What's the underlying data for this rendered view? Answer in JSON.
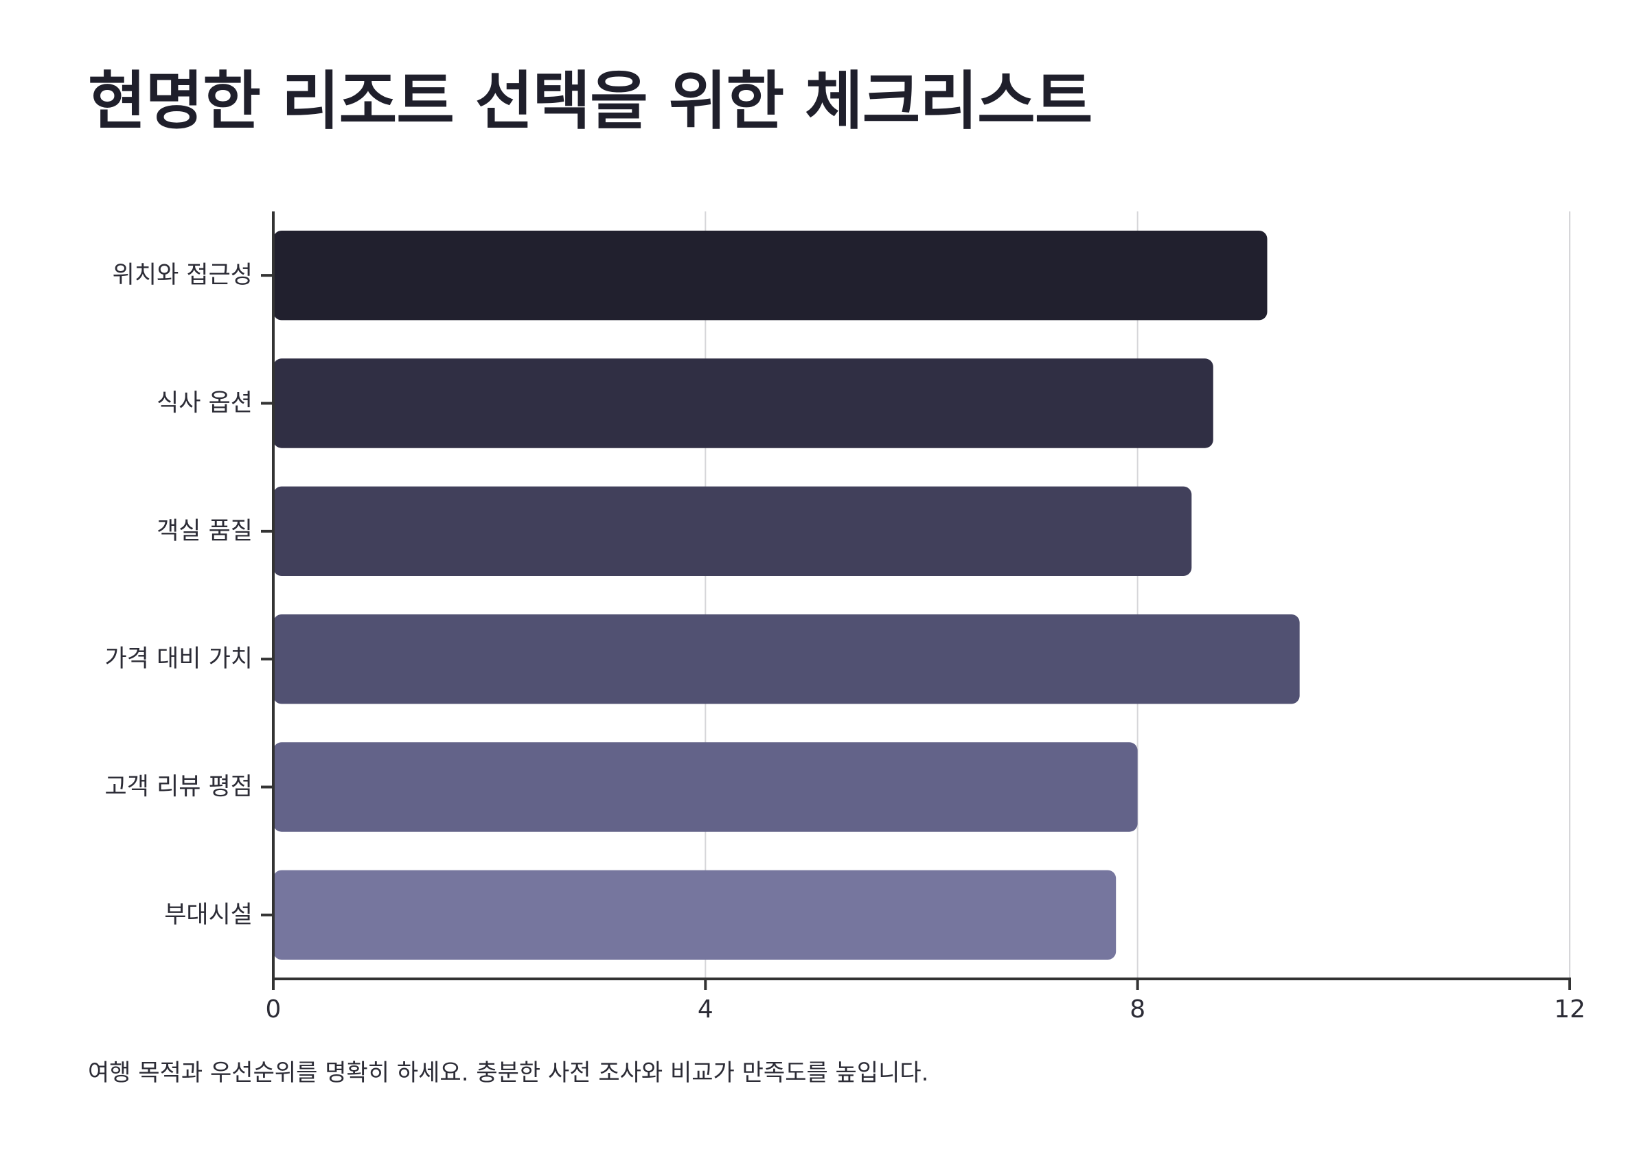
{
  "title": "현명한 리조트 선택을 위한 체크리스트",
  "footnote": "여행 목적과 우선순위를 명확히 하세요. 충분한 사전 조사와 비교가 만족도를 높입니다.",
  "chart_data": {
    "type": "bar",
    "orientation": "horizontal",
    "title": "현명한 리조트 선택을 위한 체크리스트",
    "xlabel": "",
    "ylabel": "",
    "categories": [
      "위치와 접근성",
      "식사 옵션",
      "객실 품질",
      "가격 대비 가치",
      "고객 리뷰 평점",
      "부대시설"
    ],
    "values": [
      9.2,
      8.7,
      8.5,
      9.5,
      8.0,
      7.8
    ],
    "colors": [
      "#21202e",
      "#302f44",
      "#41405b",
      "#515172",
      "#636389",
      "#76769e"
    ],
    "xlim": [
      0,
      12
    ],
    "xticks": [
      "0",
      "4",
      "8",
      "12"
    ],
    "xtick_values": [
      0,
      4,
      8,
      12
    ],
    "grid": "vertical",
    "legend": "none"
  }
}
